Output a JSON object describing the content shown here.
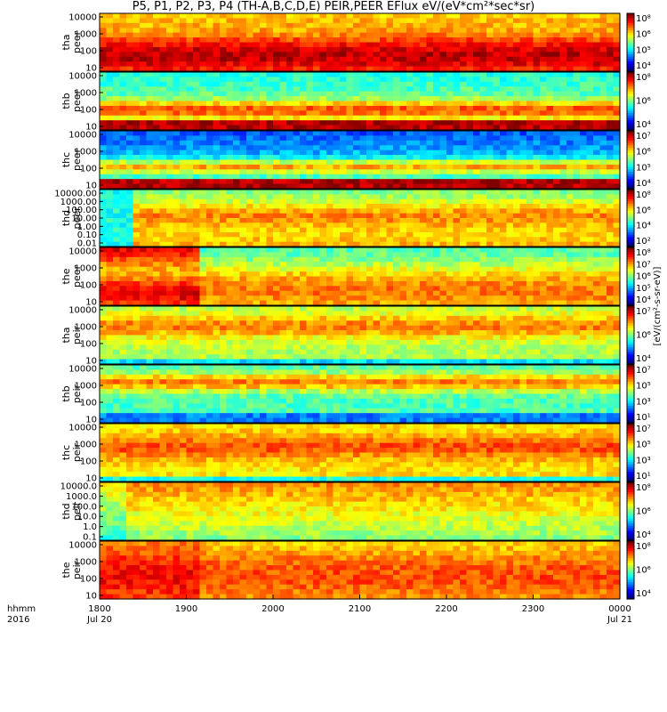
{
  "title": "P5, P1, P2, P3, P4 (TH-A,B,C,D,E) PEIR,PEER EFlux eV/(eV*cm²*sec*sr)",
  "chart_data": {
    "type": "heatmap",
    "x_axis": {
      "label_top": "hhmm",
      "label_bottom": "2016",
      "ticks": [
        "1800",
        "1900",
        "2000",
        "2100",
        "2200",
        "2300",
        "0000"
      ],
      "date_labels": [
        {
          "tick": "1800",
          "text": "Jul 20"
        },
        {
          "tick": "0000",
          "text": "Jul 21"
        }
      ]
    },
    "colorbar_label": "[eV/(cm²-s-sr-eV)]",
    "colorbar_unit": "eV/(eV*cm²*sec*sr)",
    "panels": [
      {
        "probe": "tha",
        "species": "peer",
        "yticks": [
          "10",
          "100",
          "1000",
          "10000"
        ],
        "cbar_ticks": [
          "10⁴",
          "10⁵",
          "10⁶",
          "10⁸"
        ]
      },
      {
        "probe": "thb",
        "species": "peer",
        "yticks": [
          "10",
          "100",
          "1000",
          "10000"
        ],
        "cbar_ticks": [
          "10⁴",
          "10⁶",
          "10⁸"
        ]
      },
      {
        "probe": "thc",
        "species": "peer",
        "yticks": [
          "10",
          "100",
          "1000",
          "10000"
        ],
        "cbar_ticks": [
          "10⁴",
          "10⁵",
          "10⁶",
          "10⁷"
        ]
      },
      {
        "probe": "thd",
        "species": "peer",
        "yticks": [
          "0.01",
          "0.10",
          "1.00",
          "10.00",
          "100.00",
          "1000.00",
          "10000.00"
        ],
        "cbar_ticks": [
          "10²",
          "10⁴",
          "10⁶",
          "10⁸"
        ]
      },
      {
        "probe": "the",
        "species": "peer",
        "yticks": [
          "10",
          "100",
          "1000",
          "10000"
        ],
        "cbar_ticks": [
          "10⁴",
          "10⁵",
          "10⁶",
          "10⁷",
          "10⁸"
        ]
      },
      {
        "probe": "tha",
        "species": "peir",
        "yticks": [
          "10",
          "100",
          "1000",
          "10000"
        ],
        "cbar_ticks": [
          "10⁴",
          "10⁶",
          "10⁷"
        ]
      },
      {
        "probe": "thb",
        "species": "peir",
        "yticks": [
          "10",
          "100",
          "1000",
          "10000"
        ],
        "cbar_ticks": [
          "10¹",
          "10³",
          "10⁵",
          "10⁷"
        ]
      },
      {
        "probe": "thc",
        "species": "peir",
        "yticks": [
          "10",
          "100",
          "1000",
          "10000"
        ],
        "cbar_ticks": [
          "10¹",
          "10³",
          "10⁵",
          "10⁷"
        ]
      },
      {
        "probe": "thd",
        "species": "peir",
        "yticks": [
          "0.1",
          "1.0",
          "10.0",
          "100.0",
          "1000.0",
          "10000.0"
        ],
        "cbar_ticks": [
          "10⁴",
          "10⁶",
          "10⁸"
        ]
      },
      {
        "probe": "the",
        "species": "peir",
        "yticks": [
          "10",
          "100",
          "1000",
          "10000"
        ],
        "cbar_ticks": [
          "10⁴",
          "10⁶",
          "10⁸"
        ]
      }
    ]
  }
}
